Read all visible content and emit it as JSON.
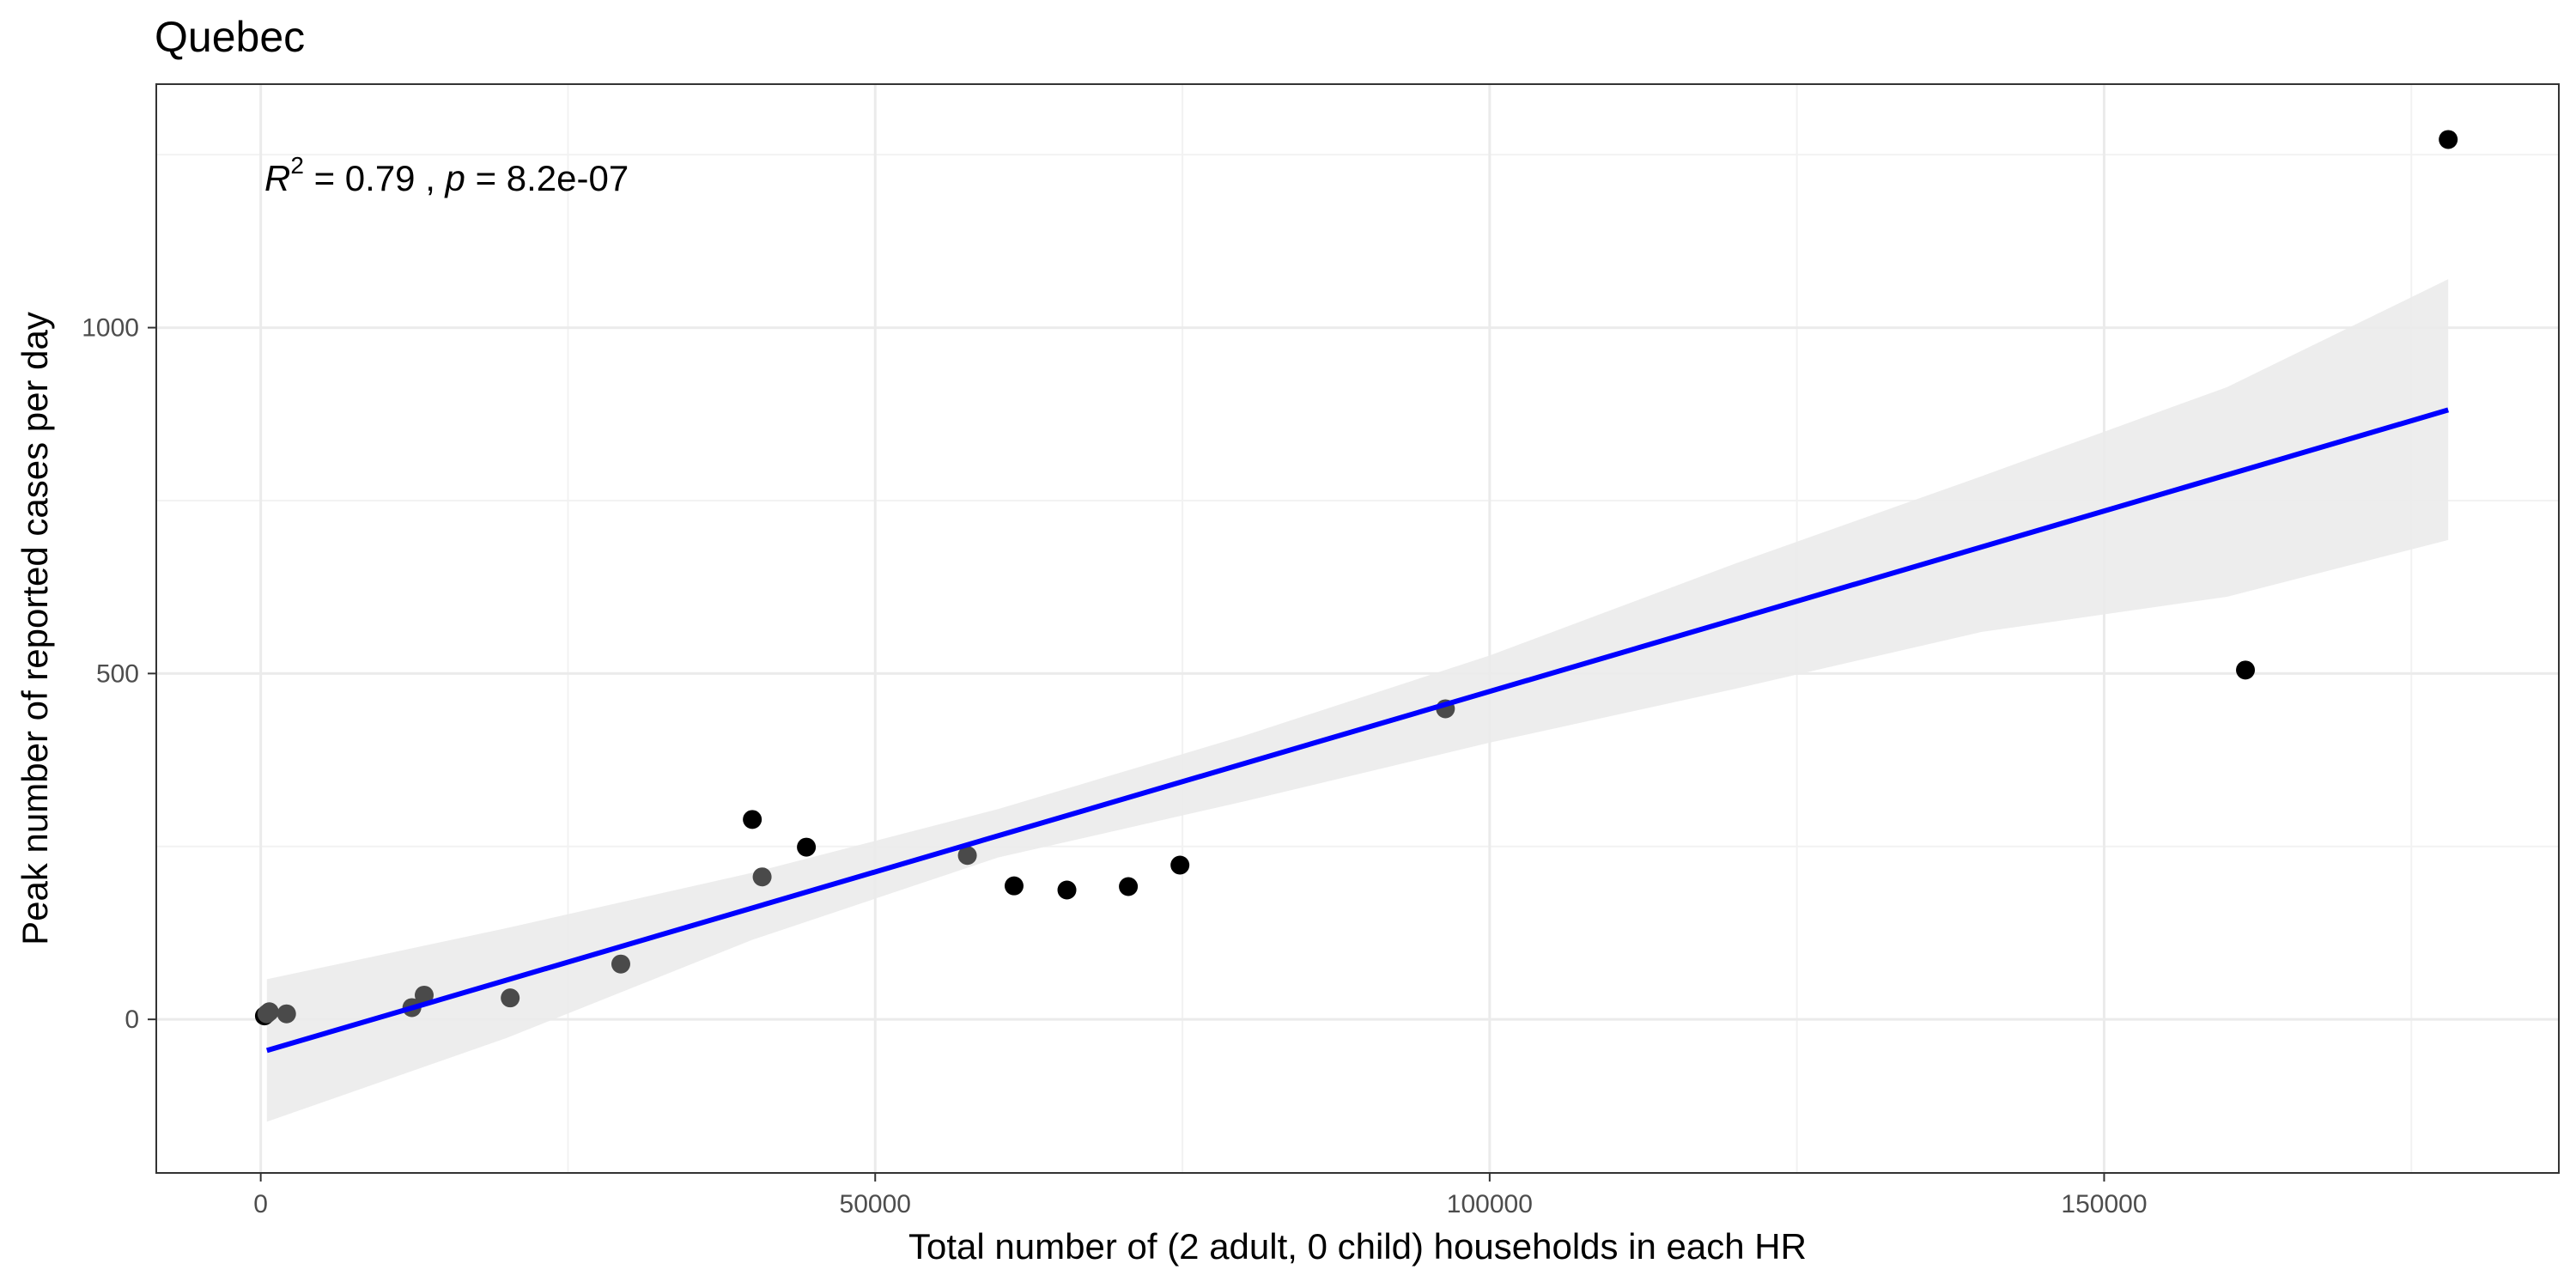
{
  "chart_data": {
    "type": "scatter",
    "title": "Quebec",
    "xlabel": "Total number of (2 adult, 0 child) households in each HR",
    "ylabel": "Peak number of reported cases per day",
    "xlim": [
      -8500,
      187000
    ],
    "ylim": [
      -222,
      1352
    ],
    "x_ticks": [
      0,
      50000,
      100000,
      150000
    ],
    "x_tick_labels": [
      "0",
      "50000",
      "100000",
      "150000"
    ],
    "y_ticks": [
      0,
      500,
      1000
    ],
    "y_tick_labels": [
      "0",
      "500",
      "1000"
    ],
    "grid": true,
    "annotation": {
      "r_symbol": "R",
      "r_exponent": "2",
      "r_value_text": " = 0.79 , ",
      "p_symbol": "p",
      "p_value_text": " = 8.2e-07"
    },
    "points": [
      {
        "x": 300,
        "y": 5
      },
      {
        "x": 500,
        "y": 8
      },
      {
        "x": 700,
        "y": 11
      },
      {
        "x": 2100,
        "y": 8
      },
      {
        "x": 12300,
        "y": 17
      },
      {
        "x": 13300,
        "y": 35
      },
      {
        "x": 20300,
        "y": 31
      },
      {
        "x": 29300,
        "y": 80
      },
      {
        "x": 40000,
        "y": 289
      },
      {
        "x": 40800,
        "y": 206
      },
      {
        "x": 44400,
        "y": 249
      },
      {
        "x": 57500,
        "y": 237
      },
      {
        "x": 61300,
        "y": 193
      },
      {
        "x": 65600,
        "y": 187
      },
      {
        "x": 70600,
        "y": 192
      },
      {
        "x": 74800,
        "y": 223
      },
      {
        "x": 96400,
        "y": 449
      },
      {
        "x": 161500,
        "y": 505
      },
      {
        "x": 178000,
        "y": 1272
      }
    ],
    "fit_line": {
      "x_start": 500,
      "y_start": -45,
      "x_end": 178000,
      "y_end": 881,
      "color": "#0000ff"
    },
    "confidence_band": {
      "x": [
        500,
        20000,
        40000,
        60000,
        80000,
        100000,
        120000,
        140000,
        160000,
        178000
      ],
      "upper": [
        58,
        132,
        212,
        304,
        410,
        526,
        659,
        785,
        914,
        1070
      ],
      "lower": [
        -148,
        -27,
        115,
        234,
        315,
        400,
        478,
        560,
        611,
        693
      ],
      "color": "#ebebeb"
    },
    "point_color": "#000000"
  }
}
